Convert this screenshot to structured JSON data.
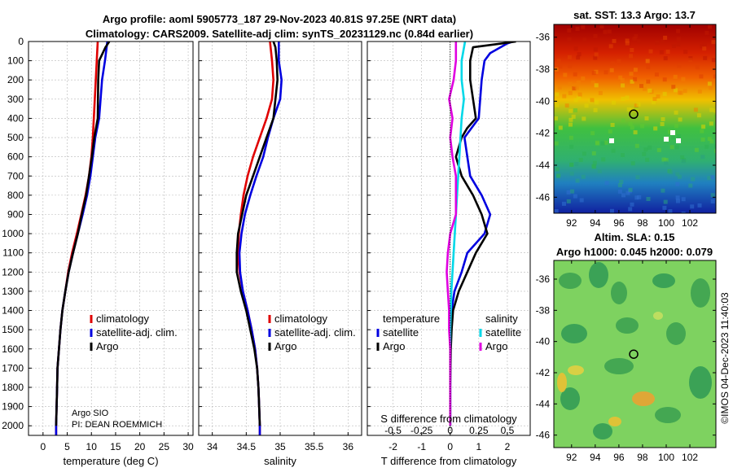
{
  "header": {
    "line1": "Argo profile: aoml 5905773_187 29-Nov-2023 40.81S 97.25E (NRT data)",
    "line2": "Climatology: CARS2009. Satellite-adj clim: synTS_20231129.nc (0.84d earlier)"
  },
  "annotations": {
    "argo_sio": "Argo SIO",
    "pi": "PI: DEAN ROEMMICH",
    "imos_stamp": "©IMOS 04-Dec-2023 11:40:03"
  },
  "chart_data": [
    {
      "id": "temperature",
      "type": "line",
      "xlabel": "temperature (deg C)",
      "ylabel": "",
      "xlim": [
        -3,
        31
      ],
      "ylim": [
        2050,
        0
      ],
      "x_ticks": [
        "0",
        "5",
        "10",
        "15",
        "20",
        "25",
        "30"
      ],
      "x_tick_values": [
        0,
        5,
        10,
        15,
        20,
        25,
        30
      ],
      "y_ticks": [
        0,
        100,
        200,
        300,
        400,
        500,
        600,
        700,
        800,
        900,
        1000,
        1100,
        1200,
        1300,
        1400,
        1500,
        1600,
        1700,
        1800,
        1900,
        2000
      ],
      "legend": [
        "climatology",
        "satellite-adj. clim.",
        "Argo"
      ],
      "colors": [
        "#e00000",
        "#0000e0",
        "#000000"
      ],
      "series": [
        {
          "name": "climatology",
          "color": "#e00000",
          "x": [
            11.3,
            11.1,
            10.9,
            10.7,
            10.5,
            10.3,
            10.0,
            9.5,
            8.8,
            7.9,
            7.0,
            6.0,
            5.2,
            4.6,
            4.0,
            3.6,
            3.3,
            3.0,
            2.9,
            2.8,
            2.7,
            2.7
          ],
          "y": [
            0,
            100,
            200,
            300,
            400,
            500,
            600,
            700,
            800,
            900,
            1000,
            1100,
            1200,
            1300,
            1400,
            1500,
            1600,
            1700,
            1800,
            1900,
            2000,
            2050
          ]
        },
        {
          "name": "satellite-adj. clim.",
          "color": "#0000e0",
          "x": [
            13.3,
            12.8,
            12.2,
            11.9,
            11.6,
            10.8,
            10.3,
            9.8,
            9.1,
            8.2,
            7.2,
            6.2,
            5.3,
            4.6,
            4.0,
            3.6,
            3.3,
            3.0,
            2.9,
            2.8,
            2.7,
            2.7
          ],
          "y": [
            0,
            100,
            200,
            300,
            400,
            500,
            600,
            700,
            800,
            900,
            1000,
            1100,
            1200,
            1300,
            1400,
            1500,
            1600,
            1700,
            1800,
            1900,
            2000,
            2050
          ]
        },
        {
          "name": "Argo",
          "color": "#000000",
          "x": [
            13.7,
            12.9,
            11.6,
            11.4,
            11.3,
            10.6,
            10.1,
            9.5,
            8.9,
            8.0,
            7.2,
            6.2,
            5.3,
            4.6,
            4.0,
            3.6,
            3.3,
            3.0,
            2.9,
            2.8,
            2.7
          ],
          "y": [
            0,
            30,
            100,
            200,
            400,
            500,
            600,
            700,
            800,
            900,
            1000,
            1100,
            1200,
            1300,
            1400,
            1500,
            1600,
            1700,
            1800,
            1900,
            2000
          ]
        }
      ]
    },
    {
      "id": "salinity",
      "type": "line",
      "xlabel": "salinity",
      "xlim": [
        33.8,
        36.2
      ],
      "ylim": [
        2050,
        0
      ],
      "x_ticks": [
        "34",
        "34.5",
        "35",
        "35.5",
        "36"
      ],
      "x_tick_values": [
        34,
        34.5,
        35,
        35.5,
        36
      ],
      "legend": [
        "climatology",
        "satellite-adj. clim.",
        "Argo"
      ],
      "colors": [
        "#e00000",
        "#0000e0",
        "#000000"
      ],
      "series": [
        {
          "name": "climatology",
          "color": "#e00000",
          "x": [
            34.85,
            34.88,
            34.9,
            34.88,
            34.8,
            34.7,
            34.6,
            34.52,
            34.46,
            34.42,
            34.39,
            34.38,
            34.4,
            34.45,
            34.52,
            34.58,
            34.63,
            34.66,
            34.68,
            34.69,
            34.7,
            34.7
          ],
          "y": [
            0,
            100,
            200,
            300,
            400,
            500,
            600,
            700,
            800,
            900,
            1000,
            1100,
            1200,
            1300,
            1400,
            1500,
            1600,
            1700,
            1800,
            1900,
            2000,
            2050
          ]
        },
        {
          "name": "satellite-adj. clim.",
          "color": "#0000e0",
          "x": [
            34.98,
            34.98,
            35.02,
            35.0,
            34.9,
            34.82,
            34.75,
            34.65,
            34.56,
            34.48,
            34.43,
            34.4,
            34.41,
            34.45,
            34.52,
            34.58,
            34.63,
            34.66,
            34.68,
            34.69,
            34.7,
            34.7
          ],
          "y": [
            0,
            100,
            200,
            300,
            400,
            500,
            600,
            700,
            800,
            900,
            1000,
            1100,
            1200,
            1300,
            1400,
            1500,
            1600,
            1700,
            1800,
            1900,
            2000,
            2050
          ]
        },
        {
          "name": "Argo",
          "color": "#000000",
          "x": [
            34.9,
            34.93,
            34.95,
            34.96,
            34.9,
            34.8,
            34.7,
            34.6,
            34.5,
            34.44,
            34.38,
            34.36,
            34.36,
            34.42,
            34.5,
            34.56,
            34.62,
            34.66,
            34.68,
            34.69,
            34.7
          ],
          "y": [
            0,
            30,
            100,
            200,
            400,
            500,
            600,
            700,
            800,
            900,
            1000,
            1100,
            1200,
            1300,
            1400,
            1500,
            1600,
            1700,
            1800,
            1900,
            2000
          ]
        }
      ]
    },
    {
      "id": "difference",
      "type": "line",
      "xlabel": "T difference from climatology",
      "xlabel_top": "S difference from climatology",
      "xlim": [
        -2.9,
        2.8
      ],
      "ylim": [
        2050,
        0
      ],
      "x_ticks": [
        "-2",
        "-1",
        "0",
        "1",
        "2"
      ],
      "x_tick_values": [
        -2,
        -1,
        0,
        1,
        2
      ],
      "s_ticks": [
        "-0.5",
        "-0.25",
        "0",
        "0.25",
        "0.5"
      ],
      "s_tick_values": [
        -0.5,
        -0.25,
        0,
        0.25,
        0.5
      ],
      "s_scale": 4,
      "legend_temperature_title": "temperature",
      "legend_salinity_title": "salinity",
      "legend_temperature": [
        "satellite",
        "Argo"
      ],
      "legend_salinity": [
        "satellite",
        "Argo"
      ],
      "series": [
        {
          "name": "T satellite",
          "color": "#0000e0",
          "scale": 1,
          "x": [
            2.2,
            2.0,
            1.4,
            1.2,
            1.1,
            1.0,
            0.5,
            0.6,
            0.7,
            1.1,
            1.4,
            1.2,
            0.6,
            0.4,
            0.15,
            0.05,
            0.02,
            0.0,
            0.0,
            0.0,
            0.0,
            0.0
          ],
          "y": [
            0,
            10,
            60,
            100,
            200,
            400,
            500,
            600,
            700,
            800,
            900,
            1000,
            1100,
            1200,
            1300,
            1400,
            1500,
            1600,
            1700,
            1800,
            1900,
            2000
          ]
        },
        {
          "name": "T Argo",
          "color": "#000000",
          "scale": 1,
          "x": [
            2.3,
            1.8,
            0.8,
            0.7,
            0.7,
            0.8,
            0.9,
            0.6,
            0.4,
            0.2,
            0.4,
            0.8,
            1.1,
            1.3,
            0.9,
            0.6,
            0.3,
            0.1,
            0.05,
            0.02,
            0.0,
            0.0
          ],
          "y": [
            0,
            10,
            30,
            100,
            200,
            300,
            400,
            450,
            500,
            600,
            700,
            800,
            900,
            1000,
            1100,
            1200,
            1300,
            1400,
            1500,
            1600,
            1800,
            2000
          ]
        },
        {
          "name": "S satellite",
          "color": "#00d8e8",
          "scale": 4,
          "x": [
            0.13,
            0.1,
            0.1,
            0.12,
            0.1,
            0.09,
            0.08,
            0.07,
            0.06,
            0.05,
            0.04,
            0.03,
            0.02,
            0.01,
            0.005,
            0.0,
            0.0,
            0.0
          ],
          "y": [
            0,
            100,
            200,
            300,
            400,
            500,
            600,
            700,
            800,
            900,
            1000,
            1100,
            1200,
            1300,
            1400,
            1500,
            1800,
            2000
          ]
        },
        {
          "name": "S Argo",
          "color": "#e000e0",
          "scale": 4,
          "x": [
            0.05,
            0.05,
            0.03,
            -0.01,
            0.02,
            0.0,
            0.02,
            0.05,
            0.05,
            0.05,
            0.0,
            -0.02,
            -0.03,
            -0.02,
            -0.01,
            -0.01,
            0.0,
            0.0,
            0.0
          ],
          "y": [
            0,
            100,
            200,
            300,
            400,
            500,
            600,
            700,
            800,
            900,
            1000,
            1100,
            1200,
            1300,
            1400,
            1500,
            1600,
            1800,
            2000
          ]
        }
      ]
    },
    {
      "id": "sst_map",
      "type": "heatmap",
      "title": "sat. SST: 13.3 Argo: 13.7",
      "xlim": [
        90.5,
        104.2
      ],
      "ylim": [
        -47,
        -35.2
      ],
      "x_ticks": [
        "92",
        "94",
        "96",
        "98",
        "100",
        "102"
      ],
      "x_tick_values": [
        92,
        94,
        96,
        98,
        100,
        102
      ],
      "y_ticks": [
        "-36",
        "-38",
        "-40",
        "-42",
        "-44",
        "-46"
      ],
      "y_tick_values": [
        -36,
        -38,
        -40,
        -42,
        -44,
        -46
      ],
      "marker": {
        "lon": 97.25,
        "lat": -40.81
      }
    },
    {
      "id": "sla_map",
      "type": "heatmap",
      "title": "Altim. SLA: 0.15",
      "subtitle": "Argo h1000: 0.045 h2000: 0.079",
      "xlim": [
        90.5,
        104.2
      ],
      "ylim": [
        -46.8,
        -34.8
      ],
      "x_ticks": [
        "92",
        "94",
        "96",
        "98",
        "100",
        "102"
      ],
      "x_tick_values": [
        92,
        94,
        96,
        98,
        100,
        102
      ],
      "y_ticks": [
        "-36",
        "-38",
        "-40",
        "-42",
        "-44",
        "-46"
      ],
      "y_tick_values": [
        -36,
        -38,
        -40,
        -42,
        -44,
        -46
      ],
      "marker": {
        "lon": 97.25,
        "lat": -40.81
      }
    }
  ]
}
